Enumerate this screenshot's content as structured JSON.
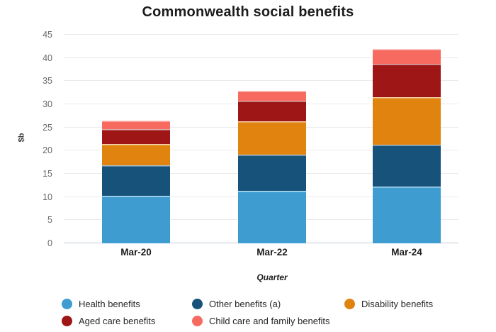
{
  "chart_data": {
    "type": "bar",
    "stacked": true,
    "title": "Commonwealth social benefits",
    "xlabel": "Quarter",
    "ylabel": "$b",
    "ylim": [
      0,
      45
    ],
    "ytick_step": 5,
    "grid": true,
    "legend_position": "bottom",
    "categories": [
      "Mar-20",
      "Mar-22",
      "Mar-24"
    ],
    "series": [
      {
        "name": "Health benefits",
        "color": "#3E9CD1",
        "values": [
          10.3,
          11.3,
          12.3
        ]
      },
      {
        "name": "Other benefits (a)",
        "color": "#16527A",
        "values": [
          6.6,
          7.9,
          9.0
        ]
      },
      {
        "name": "Disability benefits",
        "color": "#E0830F",
        "values": [
          4.5,
          7.2,
          10.3
        ]
      },
      {
        "name": "Aged care benefits",
        "color": "#9E1616",
        "values": [
          3.3,
          4.4,
          7.2
        ]
      },
      {
        "name": "Child care and family benefits",
        "color": "#F66A60",
        "values": [
          1.8,
          2.1,
          3.2
        ]
      }
    ],
    "totals": [
      26.5,
      32.9,
      42.0
    ],
    "colors": {
      "gridline": "#eaeaee",
      "axis_line": "#c2cedb",
      "tick_text": "#6a6a6a",
      "title_text": "#1c1c1c"
    }
  }
}
